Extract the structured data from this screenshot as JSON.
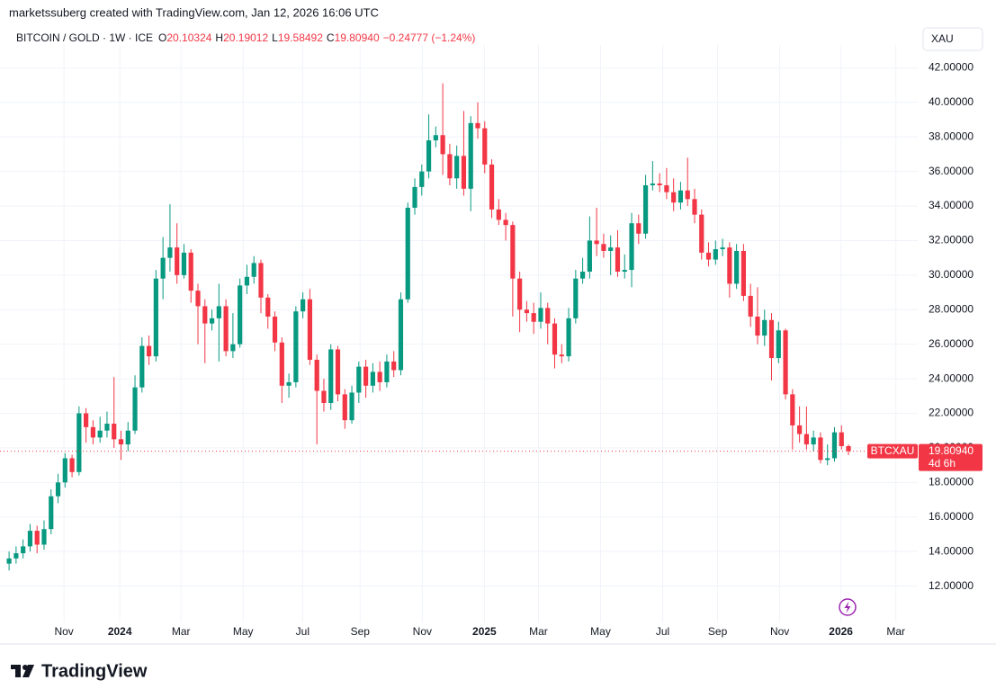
{
  "chart_data": {
    "type": "candlestick",
    "attribution": "marketssuberg created with TradingView.com, Jan 12, 2026 16:06 UTC",
    "symbol": "BITCOIN / GOLD · 1W · ICE",
    "ohlc_legend": {
      "open_label": "O",
      "open": "20.10324",
      "high_label": "H",
      "high": "20.19012",
      "low_label": "L",
      "low": "19.58492",
      "close_label": "C",
      "close": "19.80940",
      "change": "−0.24777 (−1.24%)"
    },
    "currency": "XAU",
    "last_price_label": "19.80940",
    "countdown": "4d 6h",
    "brand": "TradingView",
    "up_color": "#089981",
    "down_color": "#f23645",
    "grid": true,
    "series": [
      {
        "name": "BTCXAU",
        "open": [
          13.3,
          13.6,
          13.9,
          14.3,
          15.2,
          14.4,
          15.3,
          17.2,
          18.0,
          19.4,
          18.6,
          22.0,
          21.2,
          20.6,
          21.0,
          21.4,
          20.5,
          20.2,
          21.0,
          23.5,
          25.9,
          25.3,
          29.8,
          31.0,
          31.6,
          30.0,
          31.3,
          29.1,
          28.2,
          27.2,
          27.5,
          28.2,
          25.6,
          26.0,
          29.4,
          29.9,
          30.7,
          28.7,
          27.6,
          26.1,
          23.6,
          23.8,
          27.9,
          28.6,
          25.1,
          23.3,
          22.6,
          25.7,
          23.1,
          21.6,
          23.2,
          24.7,
          23.6,
          24.4,
          23.8,
          25.0,
          24.5,
          28.6,
          33.9,
          35.1,
          36.0,
          37.8,
          38.1,
          37.0,
          35.6,
          36.9,
          35.0,
          38.8,
          38.5,
          36.4,
          33.8,
          33.2,
          32.9,
          29.8,
          28.0,
          27.8,
          27.3,
          28.1,
          27.2,
          25.4,
          25.3,
          27.5,
          29.8,
          30.2,
          32.0,
          31.8,
          31.4,
          31.6,
          30.2,
          30.3,
          33.0,
          32.4,
          35.2,
          35.3,
          35.2,
          34.8,
          34.2,
          34.9,
          34.4,
          33.5,
          31.3,
          30.9,
          31.5,
          31.6,
          29.5,
          31.4,
          28.8,
          27.6,
          26.5,
          27.4,
          25.2,
          26.8,
          23.1,
          21.3,
          20.8,
          20.2,
          20.6,
          19.3,
          19.4,
          20.9,
          20.10324
        ],
        "high": [
          14.0,
          14.3,
          14.7,
          15.6,
          15.5,
          15.8,
          17.6,
          18.5,
          19.7,
          19.6,
          22.4,
          22.3,
          21.6,
          21.8,
          22.1,
          24.1,
          21.0,
          21.5,
          24.2,
          26.4,
          26.5,
          30.3,
          32.2,
          34.1,
          33.0,
          31.8,
          31.5,
          29.5,
          28.6,
          28.0,
          29.5,
          28.6,
          27.8,
          29.8,
          30.6,
          31.1,
          30.9,
          28.9,
          27.9,
          26.4,
          24.3,
          28.2,
          29.0,
          29.2,
          25.4,
          24.0,
          26.0,
          25.9,
          23.4,
          23.6,
          25.0,
          25.1,
          24.9,
          25.0,
          25.4,
          25.6,
          29.0,
          34.2,
          35.6,
          36.4,
          39.3,
          38.6,
          41.1,
          37.6,
          37.5,
          39.5,
          39.2,
          40.0,
          38.9,
          36.7,
          34.4,
          33.6,
          33.1,
          30.2,
          28.5,
          28.4,
          29.0,
          28.4,
          27.5,
          26.0,
          28.1,
          30.3,
          31.0,
          33.4,
          33.9,
          32.4,
          32.3,
          32.6,
          31.2,
          33.6,
          33.5,
          35.8,
          36.6,
          35.9,
          36.2,
          35.6,
          35.4,
          36.8,
          35.0,
          33.8,
          31.9,
          32.0,
          32.1,
          31.9,
          31.8,
          31.8,
          29.5,
          29.3,
          28.0,
          27.8,
          27.3,
          26.9,
          23.4,
          22.4,
          22.4,
          21.0,
          20.9,
          20.2,
          21.2,
          21.3,
          20.19012
        ],
        "low": [
          12.9,
          13.3,
          13.6,
          14.0,
          13.9,
          14.1,
          15.0,
          16.8,
          17.7,
          18.3,
          18.4,
          20.3,
          20.2,
          20.3,
          20.6,
          20.0,
          19.3,
          19.8,
          20.8,
          23.2,
          24.8,
          25.0,
          28.6,
          30.2,
          29.5,
          29.8,
          28.4,
          26.0,
          24.9,
          26.8,
          25.0,
          25.3,
          25.2,
          25.8,
          28.9,
          29.5,
          27.8,
          26.9,
          25.6,
          22.6,
          22.9,
          23.5,
          27.5,
          24.8,
          20.2,
          22.1,
          22.2,
          22.7,
          21.1,
          21.4,
          22.6,
          22.9,
          23.2,
          23.3,
          23.5,
          24.1,
          24.2,
          28.4,
          33.5,
          34.6,
          35.6,
          37.4,
          35.8,
          35.2,
          35.0,
          34.6,
          33.7,
          37.9,
          35.9,
          33.3,
          32.9,
          32.0,
          27.6,
          26.7,
          27.3,
          26.6,
          26.9,
          26.0,
          24.6,
          24.9,
          25.0,
          27.2,
          29.5,
          29.8,
          31.1,
          31.0,
          30.0,
          29.9,
          29.8,
          29.3,
          31.8,
          32.1,
          34.9,
          34.8,
          34.4,
          33.7,
          33.8,
          34.0,
          33.0,
          30.9,
          30.5,
          30.6,
          31.1,
          28.7,
          29.2,
          28.5,
          27.0,
          26.0,
          25.9,
          23.9,
          24.9,
          22.8,
          19.9,
          20.3,
          19.9,
          19.8,
          19.1,
          19.0,
          19.2,
          19.9,
          19.58492
        ],
        "close": [
          13.6,
          13.9,
          14.3,
          15.2,
          14.4,
          15.3,
          17.2,
          18.0,
          19.4,
          18.6,
          22.0,
          21.2,
          20.6,
          21.0,
          21.4,
          20.5,
          20.2,
          21.0,
          23.5,
          25.9,
          25.3,
          29.8,
          31.0,
          31.6,
          30.0,
          31.3,
          29.1,
          28.2,
          27.2,
          27.5,
          28.2,
          25.6,
          26.0,
          29.4,
          29.9,
          30.7,
          28.7,
          27.6,
          26.1,
          23.6,
          23.8,
          27.9,
          28.6,
          25.1,
          23.3,
          22.6,
          25.7,
          23.1,
          21.6,
          23.2,
          24.7,
          23.6,
          24.4,
          23.8,
          25.0,
          24.5,
          28.6,
          33.9,
          35.1,
          36.0,
          37.8,
          38.1,
          37.0,
          35.6,
          36.9,
          35.0,
          38.8,
          38.5,
          36.4,
          33.8,
          33.2,
          32.9,
          29.8,
          28.0,
          27.8,
          27.3,
          28.1,
          27.2,
          25.4,
          25.3,
          27.5,
          29.8,
          30.2,
          32.0,
          31.8,
          31.4,
          31.6,
          30.2,
          30.3,
          33.0,
          32.4,
          35.2,
          35.3,
          35.2,
          34.8,
          34.2,
          34.9,
          34.4,
          33.5,
          31.3,
          30.9,
          31.5,
          31.6,
          29.5,
          31.4,
          28.8,
          27.6,
          26.5,
          27.4,
          25.2,
          26.8,
          23.1,
          21.3,
          20.8,
          20.2,
          20.6,
          19.3,
          19.4,
          20.9,
          20.1,
          19.8094
        ]
      }
    ],
    "xlim": [
      -1.3,
      129.9
    ],
    "xticks": [
      {
        "value": 7.85,
        "label": "Nov"
      },
      {
        "value": 15.83,
        "label": "2024"
      },
      {
        "value": 24.58,
        "label": "Mar"
      },
      {
        "value": 33.46,
        "label": "May"
      },
      {
        "value": 41.96,
        "label": "Jul"
      },
      {
        "value": 50.19,
        "label": "Sep"
      },
      {
        "value": 59.07,
        "label": "Nov"
      },
      {
        "value": 67.95,
        "label": "2025"
      },
      {
        "value": 75.68,
        "label": "Mar"
      },
      {
        "value": 84.56,
        "label": "May"
      },
      {
        "value": 93.44,
        "label": "Jul"
      },
      {
        "value": 101.29,
        "label": "Sep"
      },
      {
        "value": 110.17,
        "label": "Nov"
      },
      {
        "value": 118.92,
        "label": "2026"
      },
      {
        "value": 126.77,
        "label": "Mar"
      }
    ],
    "ylim": [
      10,
      42.8
    ],
    "yticks": [
      {
        "value": 12,
        "label": "12.00000"
      },
      {
        "value": 14,
        "label": "14.00000"
      },
      {
        "value": 16,
        "label": "16.00000"
      },
      {
        "value": 18,
        "label": "18.00000"
      },
      {
        "value": 20,
        "label": "20.00000"
      },
      {
        "value": 22,
        "label": "22.00000"
      },
      {
        "value": 24,
        "label": "24.00000"
      },
      {
        "value": 26,
        "label": "26.00000"
      },
      {
        "value": 28,
        "label": "28.00000"
      },
      {
        "value": 30,
        "label": "30.00000"
      },
      {
        "value": 32,
        "label": "32.00000"
      },
      {
        "value": 34,
        "label": "34.00000"
      },
      {
        "value": 36,
        "label": "36.00000"
      },
      {
        "value": 38,
        "label": "38.00000"
      },
      {
        "value": 40,
        "label": "40.00000"
      },
      {
        "value": 42,
        "label": "42.00000"
      }
    ]
  }
}
